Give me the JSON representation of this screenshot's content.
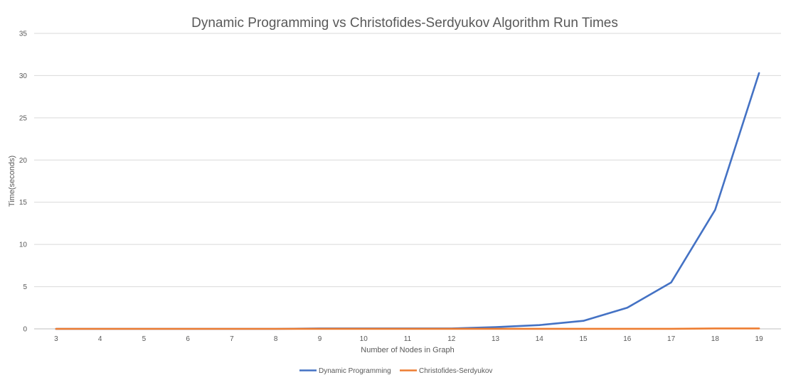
{
  "chart_data": {
    "type": "line",
    "title": "Dynamic Programming vs Christofides-Serdyukov Algorithm Run Times",
    "xlabel": "Number of Nodes in Graph",
    "ylabel": "Time(seconds)",
    "categories": [
      "3",
      "4",
      "5",
      "6",
      "7",
      "8",
      "9",
      "10",
      "11",
      "12",
      "13",
      "14",
      "15",
      "16",
      "17",
      "18",
      "19"
    ],
    "ylim": [
      0,
      35
    ],
    "yticks": [
      0,
      5,
      10,
      15,
      20,
      25,
      30,
      35
    ],
    "grid": true,
    "legend_position": "bottom-center",
    "series": [
      {
        "name": "Dynamic Programming",
        "color": "#4472c4",
        "values": [
          0,
          0,
          0,
          0,
          0,
          0,
          0.05,
          0.05,
          0.05,
          0.05,
          0.2,
          0.45,
          0.95,
          2.5,
          5.5,
          14.1,
          30.3
        ]
      },
      {
        "name": "Christofides-Serdyukov",
        "color": "#ed7d31",
        "values": [
          0,
          0,
          0,
          0,
          0,
          0,
          0.01,
          0.01,
          0.01,
          0.01,
          0.01,
          0.01,
          0.01,
          0.01,
          0.01,
          0.05,
          0.05
        ]
      }
    ]
  }
}
